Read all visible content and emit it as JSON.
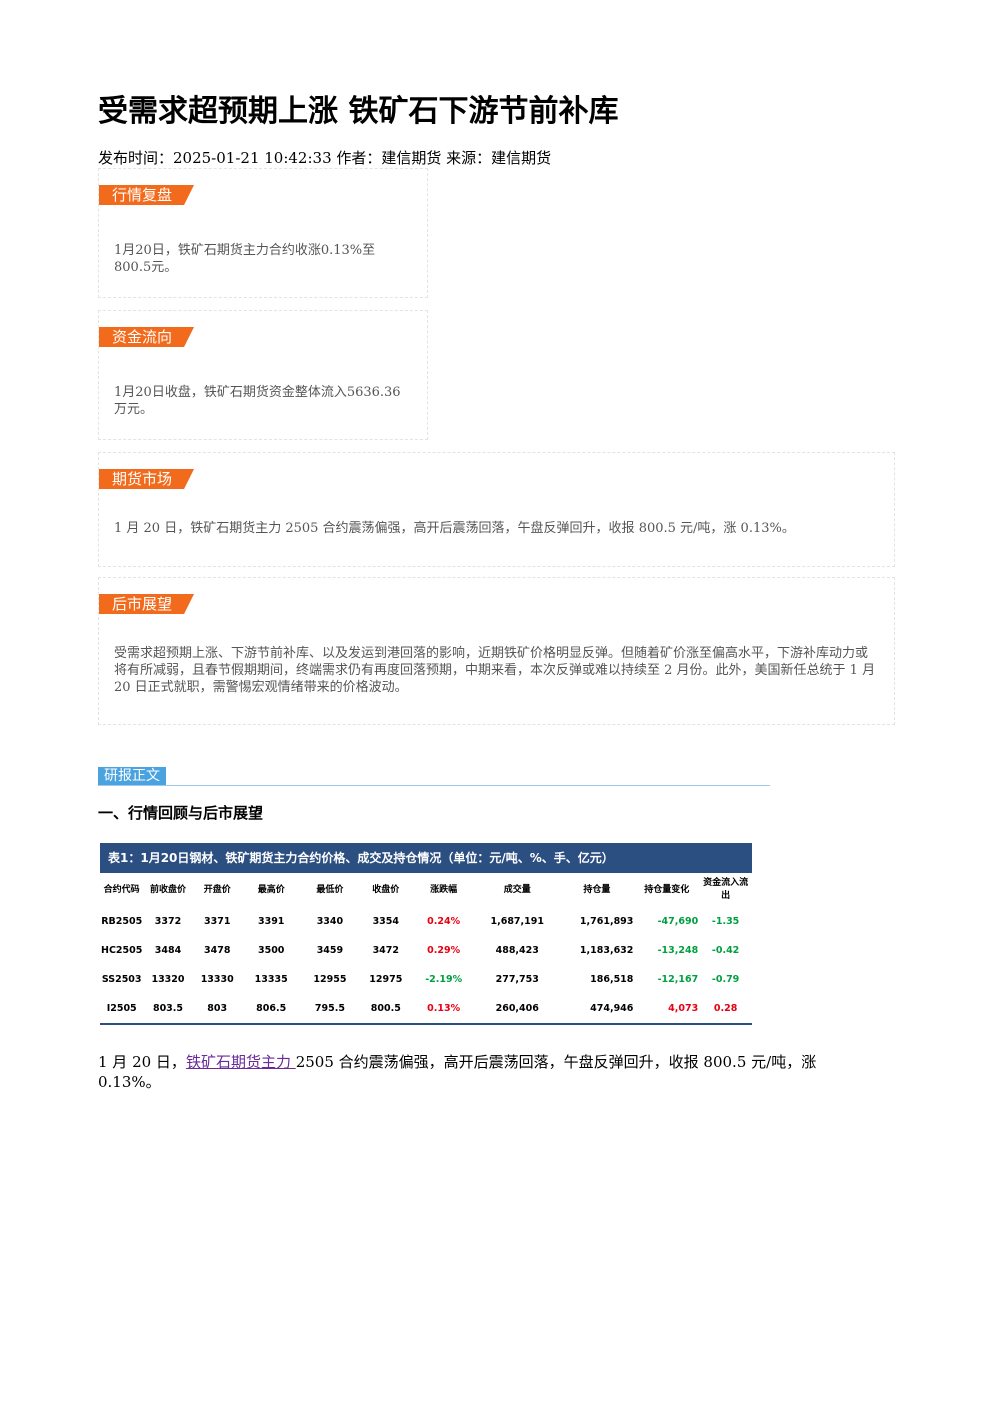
{
  "title": "受需求超预期上涨 铁矿石下游节前补库",
  "meta": "发布时间：2025-01-21 10:42:33 作者：建信期货 来源：建信期货",
  "sections": [
    {
      "label": "行情复盘",
      "text": "1月20日，铁矿石期货主力合约收涨0.13%至800.5元。"
    },
    {
      "label": "资金流向",
      "text": "1月20日收盘，铁矿石期货资金整体流入5636.36万元。"
    },
    {
      "label": "期货市场",
      "text": "1 月 20 日，铁矿石期货主力 2505 合约震荡偏强，高开后震荡回落，午盘反弹回升，收报 800.5 元/吨，涨 0.13%。"
    },
    {
      "label": "后市展望",
      "text": "受需求超预期上涨、下游节前补库、以及发运到港回落的影响，近期铁矿价格明显反弹。但随着矿价涨至偏高水平，下游补库动力或将有所减弱，且春节假期期间，终端需求仍有再度回落预期，中期来看，本次反弹或难以持续至 2 月份。此外，美国新任总统于 1 月 20 日正式就职，需警惕宏观情绪带来的价格波动。"
    }
  ],
  "report_tag": "研报正文",
  "heading": "一、行情回顾与后市展望",
  "table": {
    "caption": "表1：1月20日钢材、铁矿期货主力合约价格、成交及持仓情况（单位：元/吨、%、手、亿元）",
    "header": [
      "合约代码",
      "前收盘价",
      "开盘价",
      "最高价",
      "最低价",
      "收盘价",
      "涨跌幅",
      "成交量",
      "持仓量",
      "持仓量变化",
      "资金流入流出"
    ],
    "rows": [
      [
        "RB2505",
        "3372",
        "3371",
        "3391",
        "3340",
        "3354",
        "0.24%",
        "1,687,191",
        "1,761,893",
        "-47,690",
        "-1.35"
      ],
      [
        "HC2505",
        "3484",
        "3478",
        "3500",
        "3459",
        "3472",
        "0.29%",
        "488,423",
        "1,183,632",
        "-13,248",
        "-0.42"
      ],
      [
        "SS2503",
        "13320",
        "13330",
        "13335",
        "12955",
        "12975",
        "-2.19%",
        "277,753",
        "186,518",
        "-12,167",
        "-0.79"
      ],
      [
        "I2505",
        "803.5",
        "803",
        "806.5",
        "795.5",
        "800.5",
        "0.13%",
        "260,406",
        "474,946",
        "4,073",
        "0.28"
      ]
    ]
  },
  "closing": {
    "before": "1 月 20 日，",
    "link": "铁矿石期货主力 ",
    "after": "2505 合约震荡偏强，高开后震荡回落，午盘反弹回升，收报 800.5 元/吨，涨 0.13%。"
  }
}
